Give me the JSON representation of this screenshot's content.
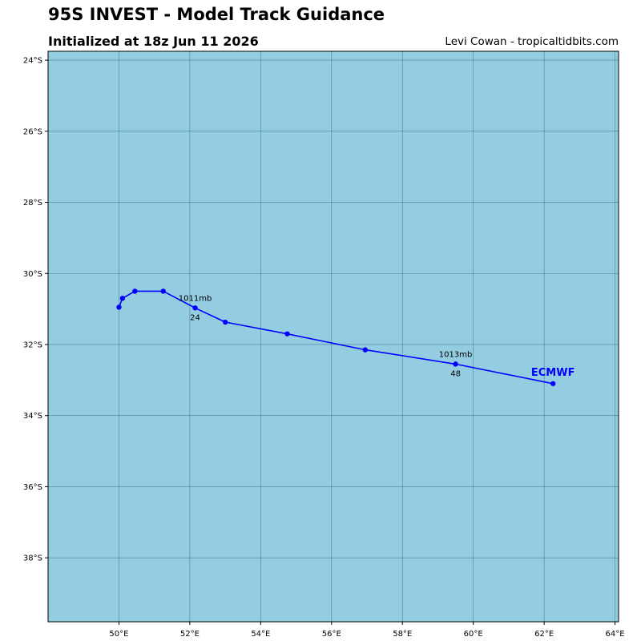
{
  "header": {
    "title": "95S INVEST - Model Track Guidance",
    "subtitle": "Initialized at 18z Jun 11 2026",
    "credit": "Levi Cowan - tropicaltidbits.com"
  },
  "colors": {
    "ocean": "#94cde2",
    "grid": "#2f6a7f",
    "track": "#0000ff",
    "frame": "#000000"
  },
  "map": {
    "lon_range": [
      48.0,
      64.1
    ],
    "lat_range": [
      -23.75,
      -39.8
    ],
    "lon_ticks": [
      {
        "value": 50,
        "label": "50°E"
      },
      {
        "value": 52,
        "label": "52°E"
      },
      {
        "value": 54,
        "label": "54°E"
      },
      {
        "value": 56,
        "label": "56°E"
      },
      {
        "value": 58,
        "label": "58°E"
      },
      {
        "value": 60,
        "label": "60°E"
      },
      {
        "value": 62,
        "label": "62°E"
      },
      {
        "value": 64,
        "label": "64°E"
      }
    ],
    "lat_ticks": [
      {
        "value": -24,
        "label": "24°S"
      },
      {
        "value": -26,
        "label": "26°S"
      },
      {
        "value": -28,
        "label": "28°S"
      },
      {
        "value": -30,
        "label": "30°S"
      },
      {
        "value": -32,
        "label": "32°S"
      },
      {
        "value": -34,
        "label": "34°S"
      },
      {
        "value": -36,
        "label": "36°S"
      },
      {
        "value": -38,
        "label": "38°S"
      }
    ],
    "grid": true
  },
  "tracks": [
    {
      "model": "ECMWF",
      "points": [
        {
          "lon": 50.0,
          "lat": -30.95
        },
        {
          "lon": 50.1,
          "lat": -30.7
        },
        {
          "lon": 50.45,
          "lat": -30.5
        },
        {
          "lon": 51.25,
          "lat": -30.5
        },
        {
          "lon": 52.15,
          "lat": -30.97
        },
        {
          "lon": 53.0,
          "lat": -31.37
        },
        {
          "lon": 54.75,
          "lat": -31.7
        },
        {
          "lon": 56.95,
          "lat": -32.15
        },
        {
          "lon": 59.5,
          "lat": -32.55
        },
        {
          "lon": 62.25,
          "lat": -33.1
        }
      ],
      "annotations": [
        {
          "lon": 52.15,
          "lat": -30.97,
          "pressure": "1011mb",
          "hour": "24"
        },
        {
          "lon": 59.5,
          "lat": -32.55,
          "pressure": "1013mb",
          "hour": "48"
        }
      ]
    }
  ]
}
